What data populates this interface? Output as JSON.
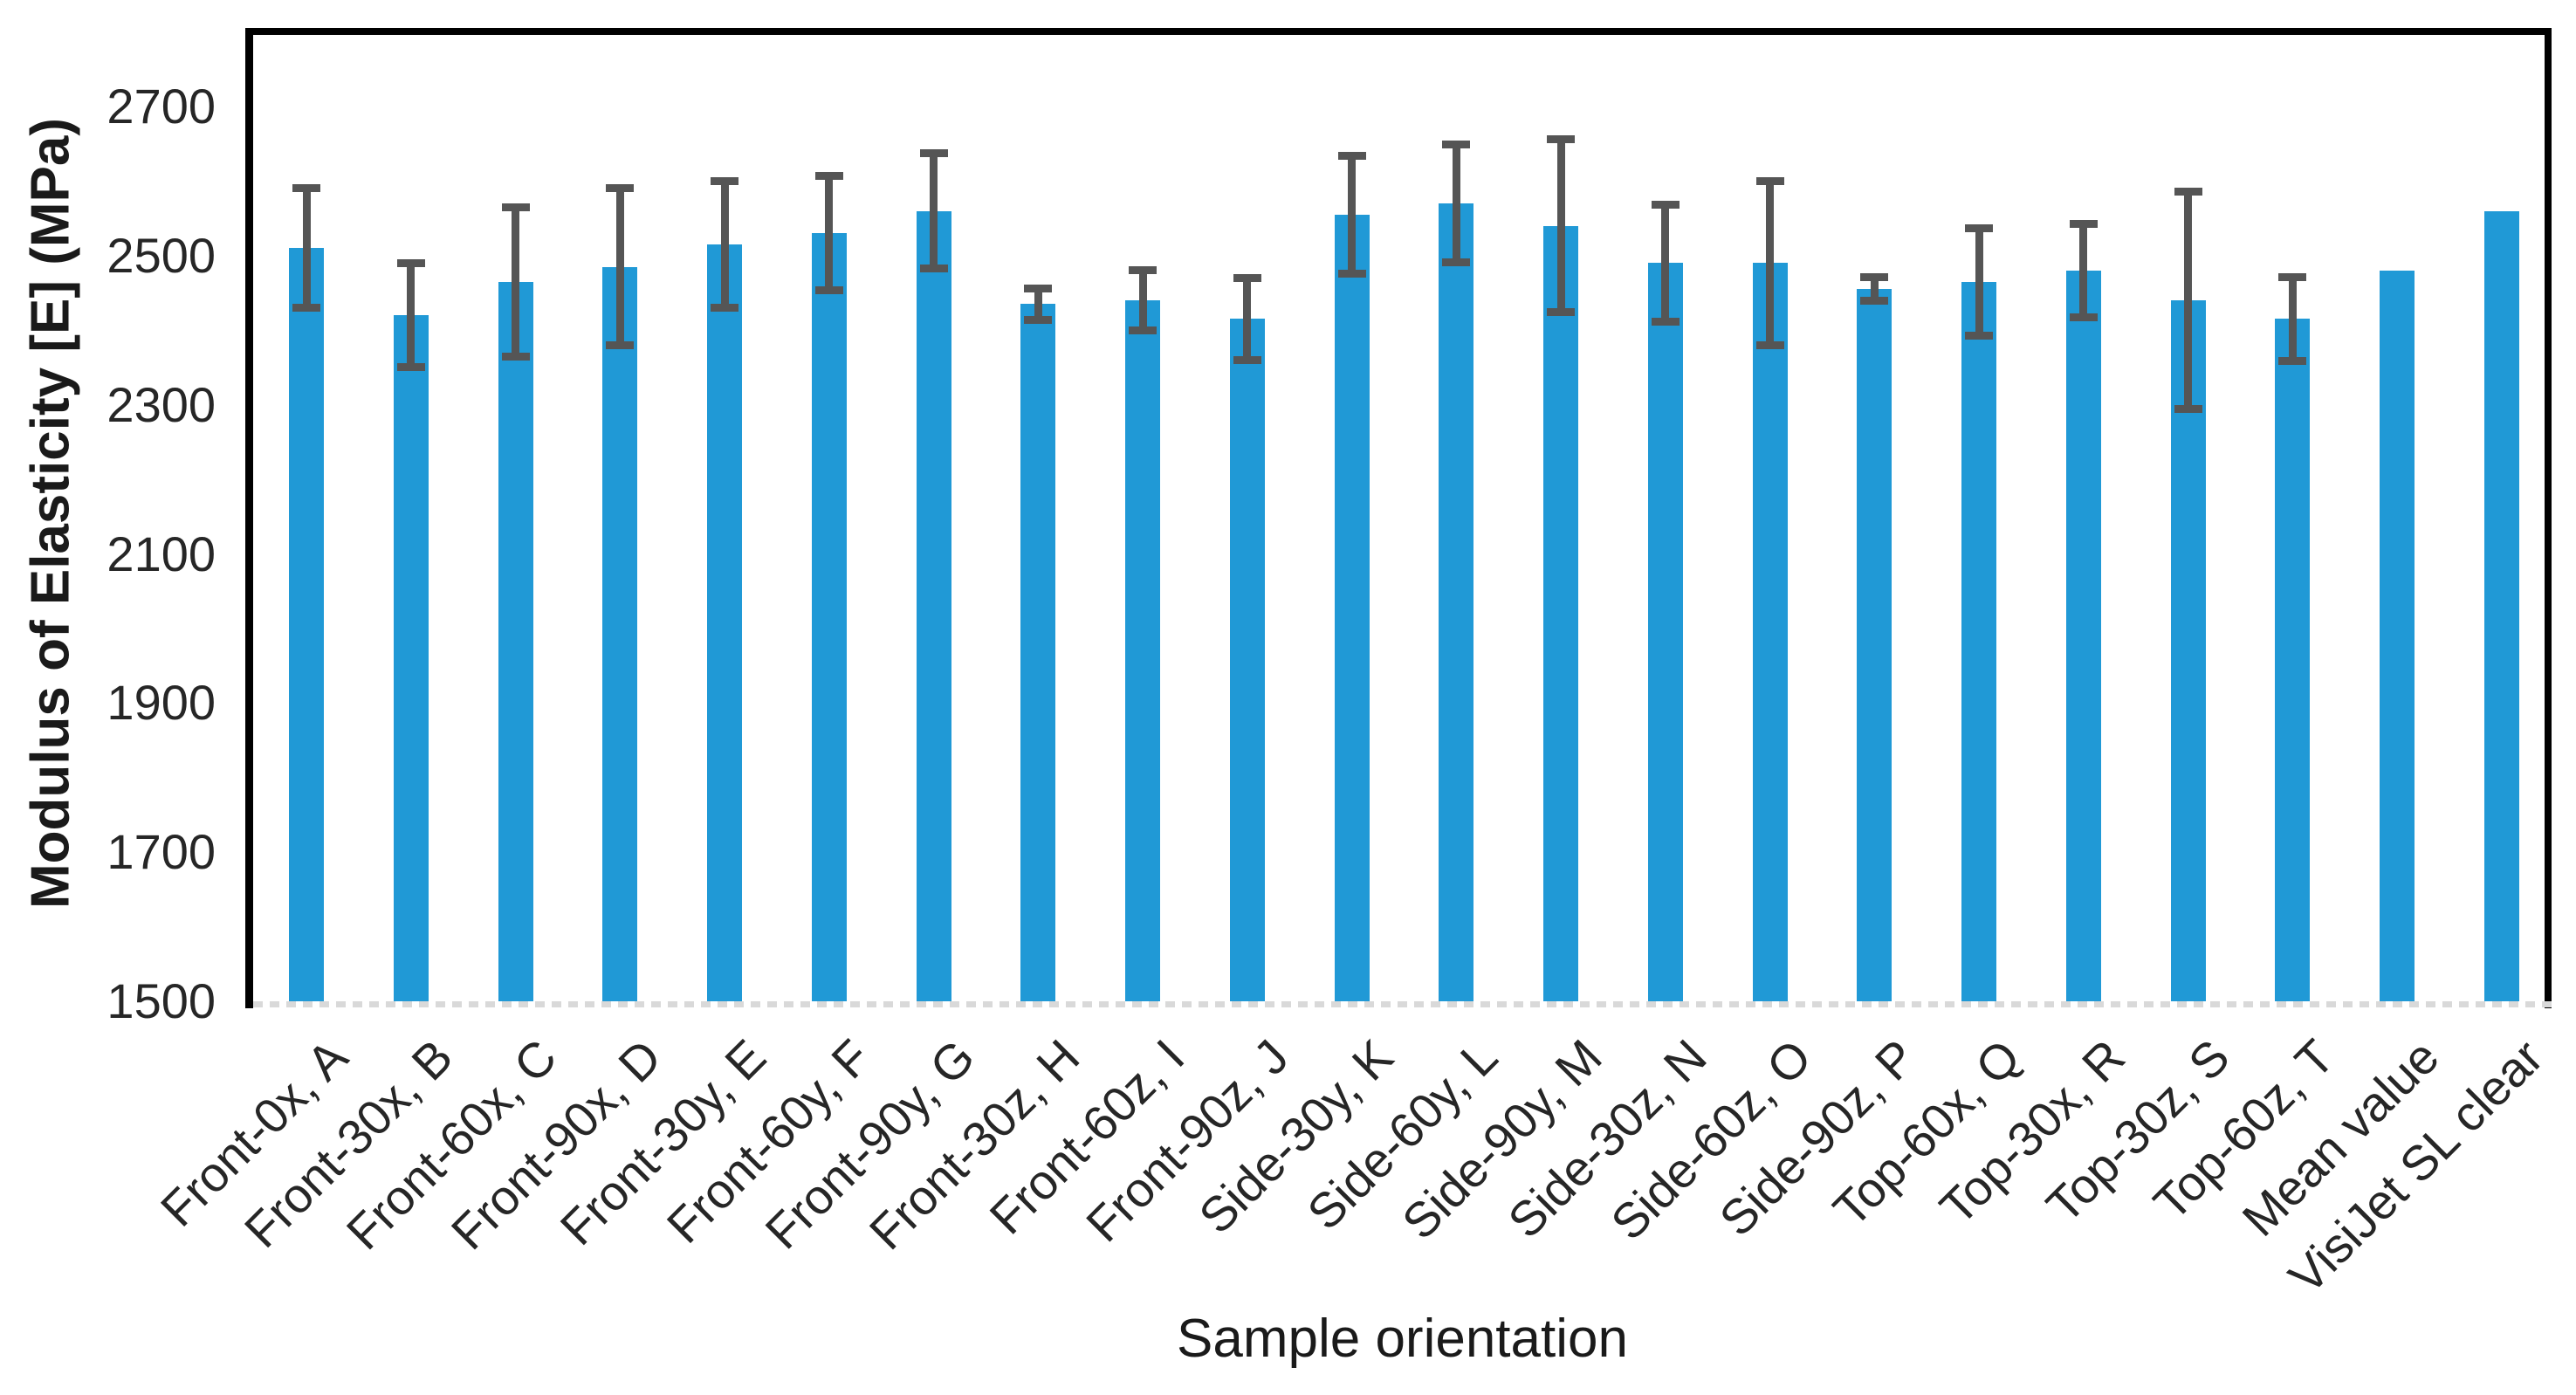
{
  "chart_data": {
    "type": "bar",
    "title": "",
    "xlabel": "Sample orientation",
    "ylabel": "Modulus of Elasticity [E] (MPa)",
    "ylim": [
      1500,
      2806
    ],
    "yticks": [
      1500,
      1700,
      1900,
      2100,
      2300,
      2500,
      2700
    ],
    "grid": false,
    "legend": false,
    "bar_color": "#2099D6",
    "error_bar_color": "#555555",
    "categories": [
      "Front-0x, A",
      "Front-30x, B",
      "Front-60x, C",
      "Front-90x, D",
      "Front-30y, E",
      "Front-60y, F",
      "Front-90y, G",
      "Front-30z, H",
      "Front-60z, I",
      "Front-90z, J",
      "Side-30y, K",
      "Side-60y, L",
      "Side-90y, M",
      "Side-30z, N",
      "Side-60z, O",
      "Side-90z, P",
      "Top-60x, Q",
      "Top-30x, R",
      "Top-30z, S",
      "Top-60z, T",
      "Mean value",
      "VisiJet SL clear"
    ],
    "values": [
      2510,
      2420,
      2465,
      2485,
      2515,
      2530,
      2560,
      2435,
      2440,
      2415,
      2555,
      2570,
      2540,
      2490,
      2490,
      2455,
      2465,
      2480,
      2440,
      2415,
      2480,
      2560
    ],
    "errors": [
      80,
      70,
      100,
      105,
      85,
      77,
      77,
      21,
      40,
      55,
      79,
      79,
      116,
      78,
      110,
      16,
      72,
      63,
      146,
      56,
      null,
      null
    ]
  }
}
